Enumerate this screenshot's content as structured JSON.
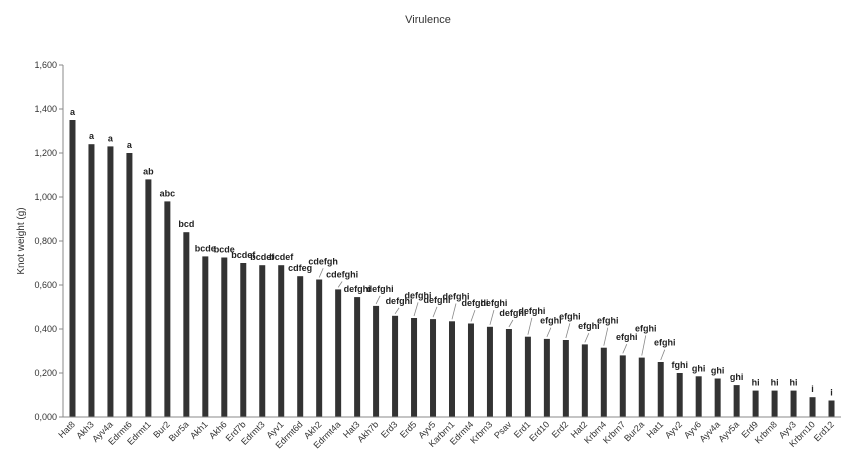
{
  "chart_data": {
    "type": "bar",
    "title": "Virulence",
    "xlabel": "",
    "ylabel": "Knot weight (g)",
    "ylim": [
      0,
      1.6
    ],
    "yticks": [
      "0,000",
      "0,200",
      "0,400",
      "0,600",
      "0,800",
      "1,000",
      "1,200",
      "1,400",
      "1,600"
    ],
    "grid": false,
    "legend": "none",
    "bar_color": "#333333",
    "categories": [
      "Hat8",
      "Akh3",
      "Ayv4a",
      "Edrmt6",
      "Edrmt1",
      "Bur2",
      "Bur5a",
      "Akh1",
      "Akh6",
      "Erd7b",
      "Edrmt3",
      "Ayv1",
      "Edrmt6d",
      "Akh2",
      "Edrmt4a",
      "Hat3",
      "Akh7b",
      "Erd3",
      "Erd5",
      "Ayv5",
      "Karbrn1",
      "Edrmt4",
      "Krbrn3",
      "Psav",
      "Erd1",
      "Erd10",
      "Erd2",
      "Hat2",
      "Krbrn4",
      "Krbrn7",
      "Bur2a",
      "Hat1",
      "Ayv2",
      "Ayv6",
      "Ayv4a",
      "Ayv5a",
      "Erd9",
      "Krbrn8",
      "Ayv3",
      "Krbrn10",
      "Erd12"
    ],
    "values": [
      1.35,
      1.24,
      1.23,
      1.2,
      1.08,
      0.98,
      0.84,
      0.73,
      0.725,
      0.7,
      0.69,
      0.69,
      0.64,
      0.625,
      0.58,
      0.545,
      0.505,
      0.46,
      0.45,
      0.445,
      0.435,
      0.425,
      0.41,
      0.4,
      0.365,
      0.355,
      0.35,
      0.33,
      0.315,
      0.28,
      0.27,
      0.25,
      0.2,
      0.185,
      0.175,
      0.145,
      0.12,
      0.12,
      0.12,
      0.09,
      0.075
    ],
    "labels": [
      "a",
      "a",
      "a",
      "a",
      "ab",
      "abc",
      "bcd",
      "bcde",
      "bcde",
      "bcdef",
      "bcdef",
      "bcdef",
      "cdfeg",
      "cdefgh",
      "cdefghi",
      "defghi",
      "defghi",
      "defghi",
      "defghi",
      "defghi",
      "defghi",
      "defghi",
      "defghi",
      "defghi",
      "defghi",
      "efghi",
      "efghi",
      "efghi",
      "efghi",
      "efghi",
      "efghi",
      "efghi",
      "fghi",
      "ghi",
      "ghi",
      "ghi",
      "hi",
      "hi",
      "hi",
      "i",
      "i"
    ]
  }
}
